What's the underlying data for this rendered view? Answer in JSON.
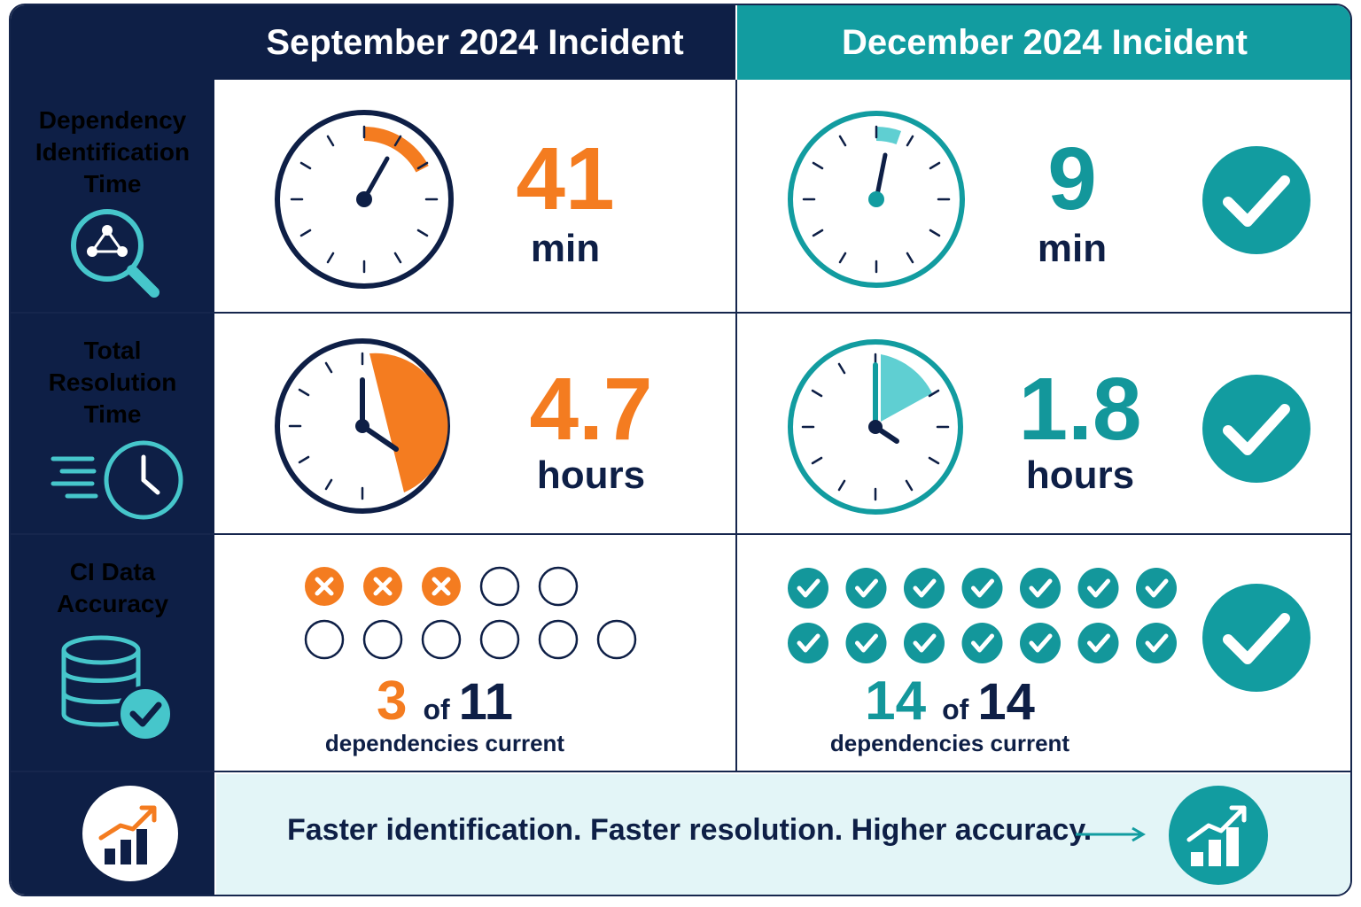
{
  "headers": {
    "september": "September 2024 Incident",
    "december": "December 2024 Incident"
  },
  "rows": {
    "identification": {
      "label_line1": "Dependency",
      "label_line2": "Identification",
      "label_line3": "Time",
      "sep_value": "41",
      "sep_unit": "min",
      "dec_value": "9",
      "dec_unit": "min"
    },
    "resolution": {
      "label_line1": "Total",
      "label_line2": "Resolution",
      "label_line3": "Time",
      "sep_value": "4.7",
      "sep_unit": "hours",
      "dec_value": "1.8",
      "dec_unit": "hours"
    },
    "accuracy": {
      "label_line1": "CI Data",
      "label_line2": "Accuracy",
      "sep_current": "3",
      "sep_of": "of",
      "sep_total": "11",
      "sep_caption": "dependencies current",
      "dec_current": "14",
      "dec_of": "of",
      "dec_total": "14",
      "dec_caption": "dependencies current"
    }
  },
  "footer": {
    "tagline": "Faster identification. Faster resolution. Higher accuracy."
  },
  "colors": {
    "navy": "#0e1f46",
    "teal": "#13979b",
    "light_teal": "#5fcfd2",
    "orange": "#f47c20",
    "footer_bg": "#e3f5f7"
  },
  "icons": {
    "identification": "magnifier-network-icon",
    "resolution": "fast-clock-icon",
    "accuracy": "database-check-icon",
    "footer_left": "growth-chart-icon",
    "footer_right": "growth-chart-icon",
    "status": "checkmark-icon"
  }
}
